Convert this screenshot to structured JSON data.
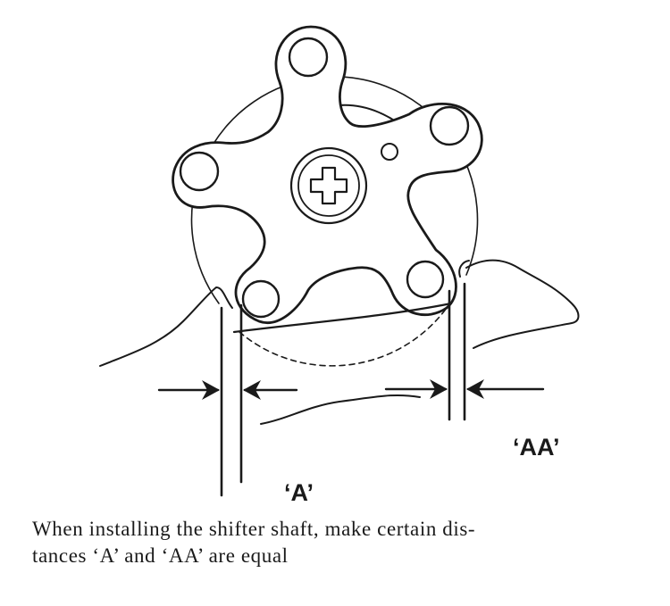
{
  "labels": {
    "a": "‘A’",
    "aa": "‘AA’"
  },
  "caption": "When installing the shifter shaft, make certain dis-\ntances ‘A’ and ‘AA’ are equal"
}
